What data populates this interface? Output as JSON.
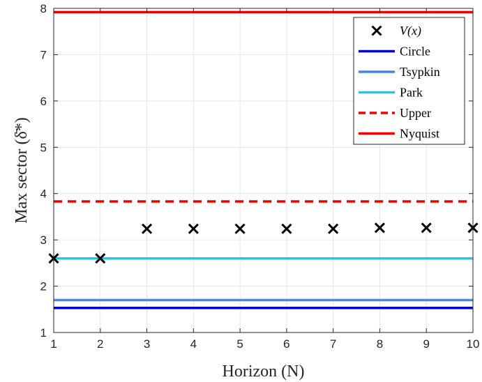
{
  "chart_data": {
    "type": "line",
    "xlabel": "Horizon (N)",
    "ylabel": "Max sector (δ̄*)",
    "xlim": [
      1,
      10
    ],
    "ylim": [
      1,
      8
    ],
    "xticks": [
      1,
      2,
      3,
      4,
      5,
      6,
      7,
      8,
      9,
      10
    ],
    "yticks": [
      1,
      2,
      3,
      4,
      5,
      6,
      7,
      8
    ],
    "grid": true,
    "legend_position": "top-right",
    "series": [
      {
        "name": "V(x)",
        "kind": "marker",
        "marker": "x",
        "color": "#000000",
        "x": [
          1,
          2,
          3,
          4,
          5,
          6,
          7,
          8,
          9,
          10
        ],
        "y": [
          2.6,
          2.6,
          3.24,
          3.24,
          3.24,
          3.24,
          3.24,
          3.26,
          3.26,
          3.26
        ]
      },
      {
        "name": "Circle",
        "kind": "line",
        "style": "solid",
        "color": "#0000cc",
        "x": [
          1,
          10
        ],
        "y": [
          1.53,
          1.53
        ]
      },
      {
        "name": "Tsypkin",
        "kind": "line",
        "style": "solid",
        "color": "#4a86e8",
        "x": [
          1,
          10
        ],
        "y": [
          1.7,
          1.7
        ]
      },
      {
        "name": "Park",
        "kind": "line",
        "style": "solid",
        "color": "#1ec8ee",
        "x": [
          1,
          10
        ],
        "y": [
          2.6,
          2.6
        ]
      },
      {
        "name": "Upper",
        "kind": "line",
        "style": "dashed",
        "color": "#ee0000",
        "x": [
          1,
          10
        ],
        "y": [
          3.83,
          3.83
        ]
      },
      {
        "name": "Nyquist",
        "kind": "line",
        "style": "solid",
        "color": "#ee0000",
        "x": [
          1,
          10
        ],
        "y": [
          7.92,
          7.92
        ]
      }
    ]
  }
}
